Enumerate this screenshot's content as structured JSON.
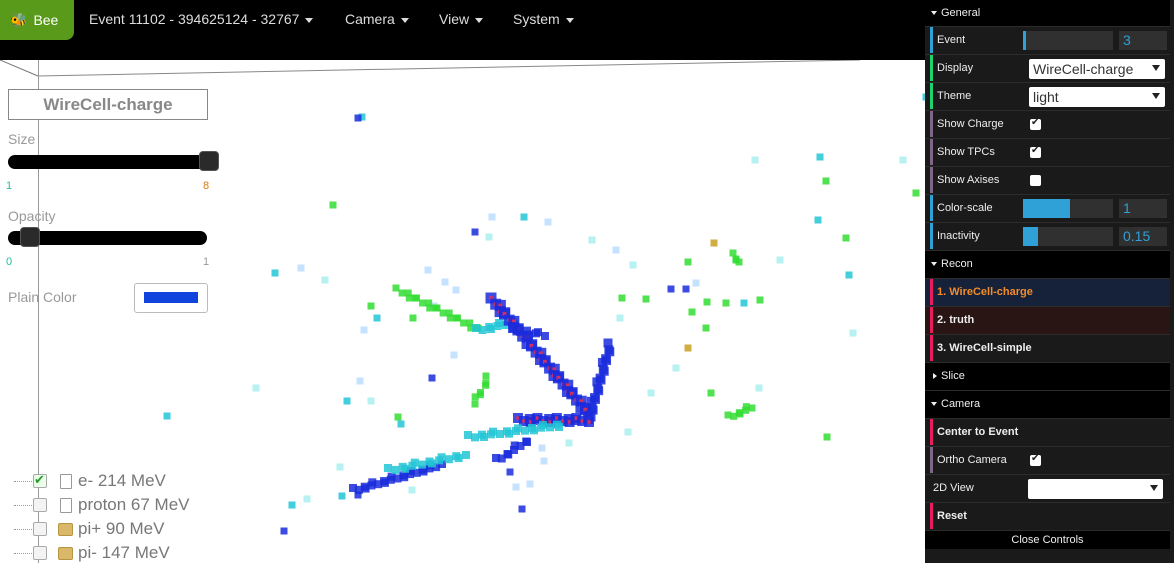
{
  "navbar": {
    "brand": "Bee",
    "event": "Event 11102 - 394625124 - 32767",
    "menus": [
      "Camera",
      "View",
      "System"
    ]
  },
  "overlay": {
    "title": "WireCell-charge",
    "size": {
      "label": "Size",
      "min": "1",
      "max": "8",
      "value": 8
    },
    "opacity": {
      "label": "Opacity",
      "min": "0",
      "max": "1",
      "value": 0.1
    },
    "plain_color": {
      "label": "Plain Color",
      "color": "#1144dd"
    }
  },
  "particles": [
    {
      "label": "e- 214 MeV",
      "checked": true,
      "icon": "file-icon"
    },
    {
      "label": "proton 67 MeV",
      "checked": false,
      "icon": "file-icon"
    },
    {
      "label": "pi+ 90 MeV",
      "checked": false,
      "icon": "folder-icon"
    },
    {
      "label": "pi- 147 MeV",
      "checked": false,
      "icon": "folder-icon"
    }
  ],
  "panel": {
    "general": {
      "title": "General",
      "event": {
        "label": "Event",
        "value": "3",
        "fraction": 0.03
      },
      "display": {
        "label": "Display",
        "value": "WireCell-charge"
      },
      "theme": {
        "label": "Theme",
        "value": "light"
      },
      "show_charge": {
        "label": "Show Charge",
        "checked": true
      },
      "show_tpcs": {
        "label": "Show TPCs",
        "checked": true
      },
      "show_axises": {
        "label": "Show Axises",
        "checked": false
      },
      "color_scale": {
        "label": "Color-scale",
        "value": "1",
        "fraction": 0.52
      },
      "inactivity": {
        "label": "Inactivity",
        "value": "0.15",
        "fraction": 0.17
      }
    },
    "recon": {
      "title": "Recon",
      "items": [
        "1. WireCell-charge",
        "2. truth",
        "3. WireCell-simple"
      ]
    },
    "slice": {
      "title": "Slice"
    },
    "camera": {
      "title": "Camera",
      "center": "Center to Event",
      "ortho": {
        "label": "Ortho Camera",
        "checked": true
      },
      "view2d": {
        "label": "2D View",
        "value": ""
      },
      "reset": "Reset"
    },
    "close": "Close Controls"
  },
  "colors": {
    "brand_green": "#5a9a1a",
    "accent_blue": "#2fa1d6",
    "recon_orange": "#f28c28",
    "track_blue": "#1a2bdc",
    "track_green": "#33dd33",
    "track_cyan": "#22c6d6"
  }
}
